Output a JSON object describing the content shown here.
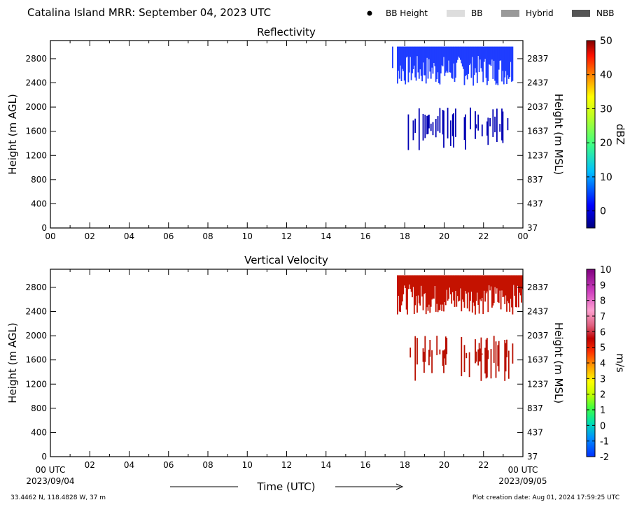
{
  "header": {
    "title": "Catalina Island MRR:  September 04, 2023 UTC",
    "legend": [
      {
        "label": "BB Height",
        "kind": "dot",
        "color": "#000000"
      },
      {
        "label": "BB",
        "kind": "swatch",
        "color": "#dddddd"
      },
      {
        "label": "Hybrid",
        "kind": "swatch",
        "color": "#999999"
      },
      {
        "label": "NBB",
        "kind": "swatch",
        "color": "#555555"
      }
    ]
  },
  "footer": {
    "coords": "33.4462 N, 118.4828 W, 37 m",
    "created": "Plot creation date: Aug 01, 2024 17:59:25 UTC",
    "time_label": "Time (UTC)",
    "start_time": "00 UTC",
    "start_date": "2023/09/04",
    "end_time": "00 UTC",
    "end_date": "2023/09/05"
  },
  "chart_data": [
    {
      "type": "heatmap",
      "title": "Reflectivity",
      "xlabel": "",
      "ylabel": "Height (m AGL)",
      "ylabel_right": "Height (m MSL)",
      "x_ticks": [
        "00",
        "02",
        "04",
        "06",
        "08",
        "10",
        "12",
        "14",
        "16",
        "18",
        "20",
        "22",
        "00"
      ],
      "xlim": [
        0,
        24
      ],
      "ylim": [
        0,
        3100
      ],
      "y_ticks": [
        0,
        400,
        800,
        1200,
        1600,
        2000,
        2400,
        2800
      ],
      "y_ticks_right": [
        37,
        437,
        837,
        1237,
        1637,
        2037,
        2437,
        2837
      ],
      "colorbar": {
        "label": "dBZ",
        "ticks": [
          0,
          10,
          20,
          30,
          40,
          50
        ],
        "range": [
          -5,
          50
        ]
      },
      "fields": [
        {
          "name": "upper layer",
          "color": "#1f3dff",
          "x_start": 17.0,
          "x_end": 23.5,
          "top": 3000,
          "bottom_min": 2350,
          "bottom_max": 2850
        },
        {
          "name": "mid layer",
          "color": "#0000b4",
          "x_start": 18.1,
          "x_end": 23.5,
          "top": 2000,
          "bottom_min": 1250,
          "bottom_max": 1700
        }
      ]
    },
    {
      "type": "heatmap",
      "title": "Vertical Velocity",
      "xlabel": "",
      "ylabel": "Height (m AGL)",
      "ylabel_right": "Height (m MSL)",
      "x_ticks": [
        "00",
        "02",
        "04",
        "06",
        "08",
        "10",
        "12",
        "14",
        "16",
        "18",
        "20",
        "22",
        "00"
      ],
      "xlim": [
        0,
        24
      ],
      "ylim": [
        0,
        3100
      ],
      "y_ticks": [
        0,
        400,
        800,
        1200,
        1600,
        2000,
        2400,
        2800
      ],
      "y_ticks_right": [
        37,
        437,
        837,
        1237,
        1637,
        2037,
        2437,
        2837
      ],
      "colorbar": {
        "label": "m/s",
        "ticks": [
          -2,
          -1,
          0,
          1,
          2,
          3,
          4,
          5,
          6,
          7,
          8,
          9,
          10
        ],
        "range": [
          -2,
          10
        ]
      },
      "fields": [
        {
          "name": "upper layer",
          "color": "#c41200",
          "x_start": 17.0,
          "x_end": 24.0,
          "top": 3000,
          "bottom_min": 2350,
          "bottom_max": 2850
        },
        {
          "name": "mid layer",
          "color": "#b80f00",
          "x_start": 18.1,
          "x_end": 23.5,
          "top": 2000,
          "bottom_min": 1250,
          "bottom_max": 1700
        }
      ]
    }
  ]
}
